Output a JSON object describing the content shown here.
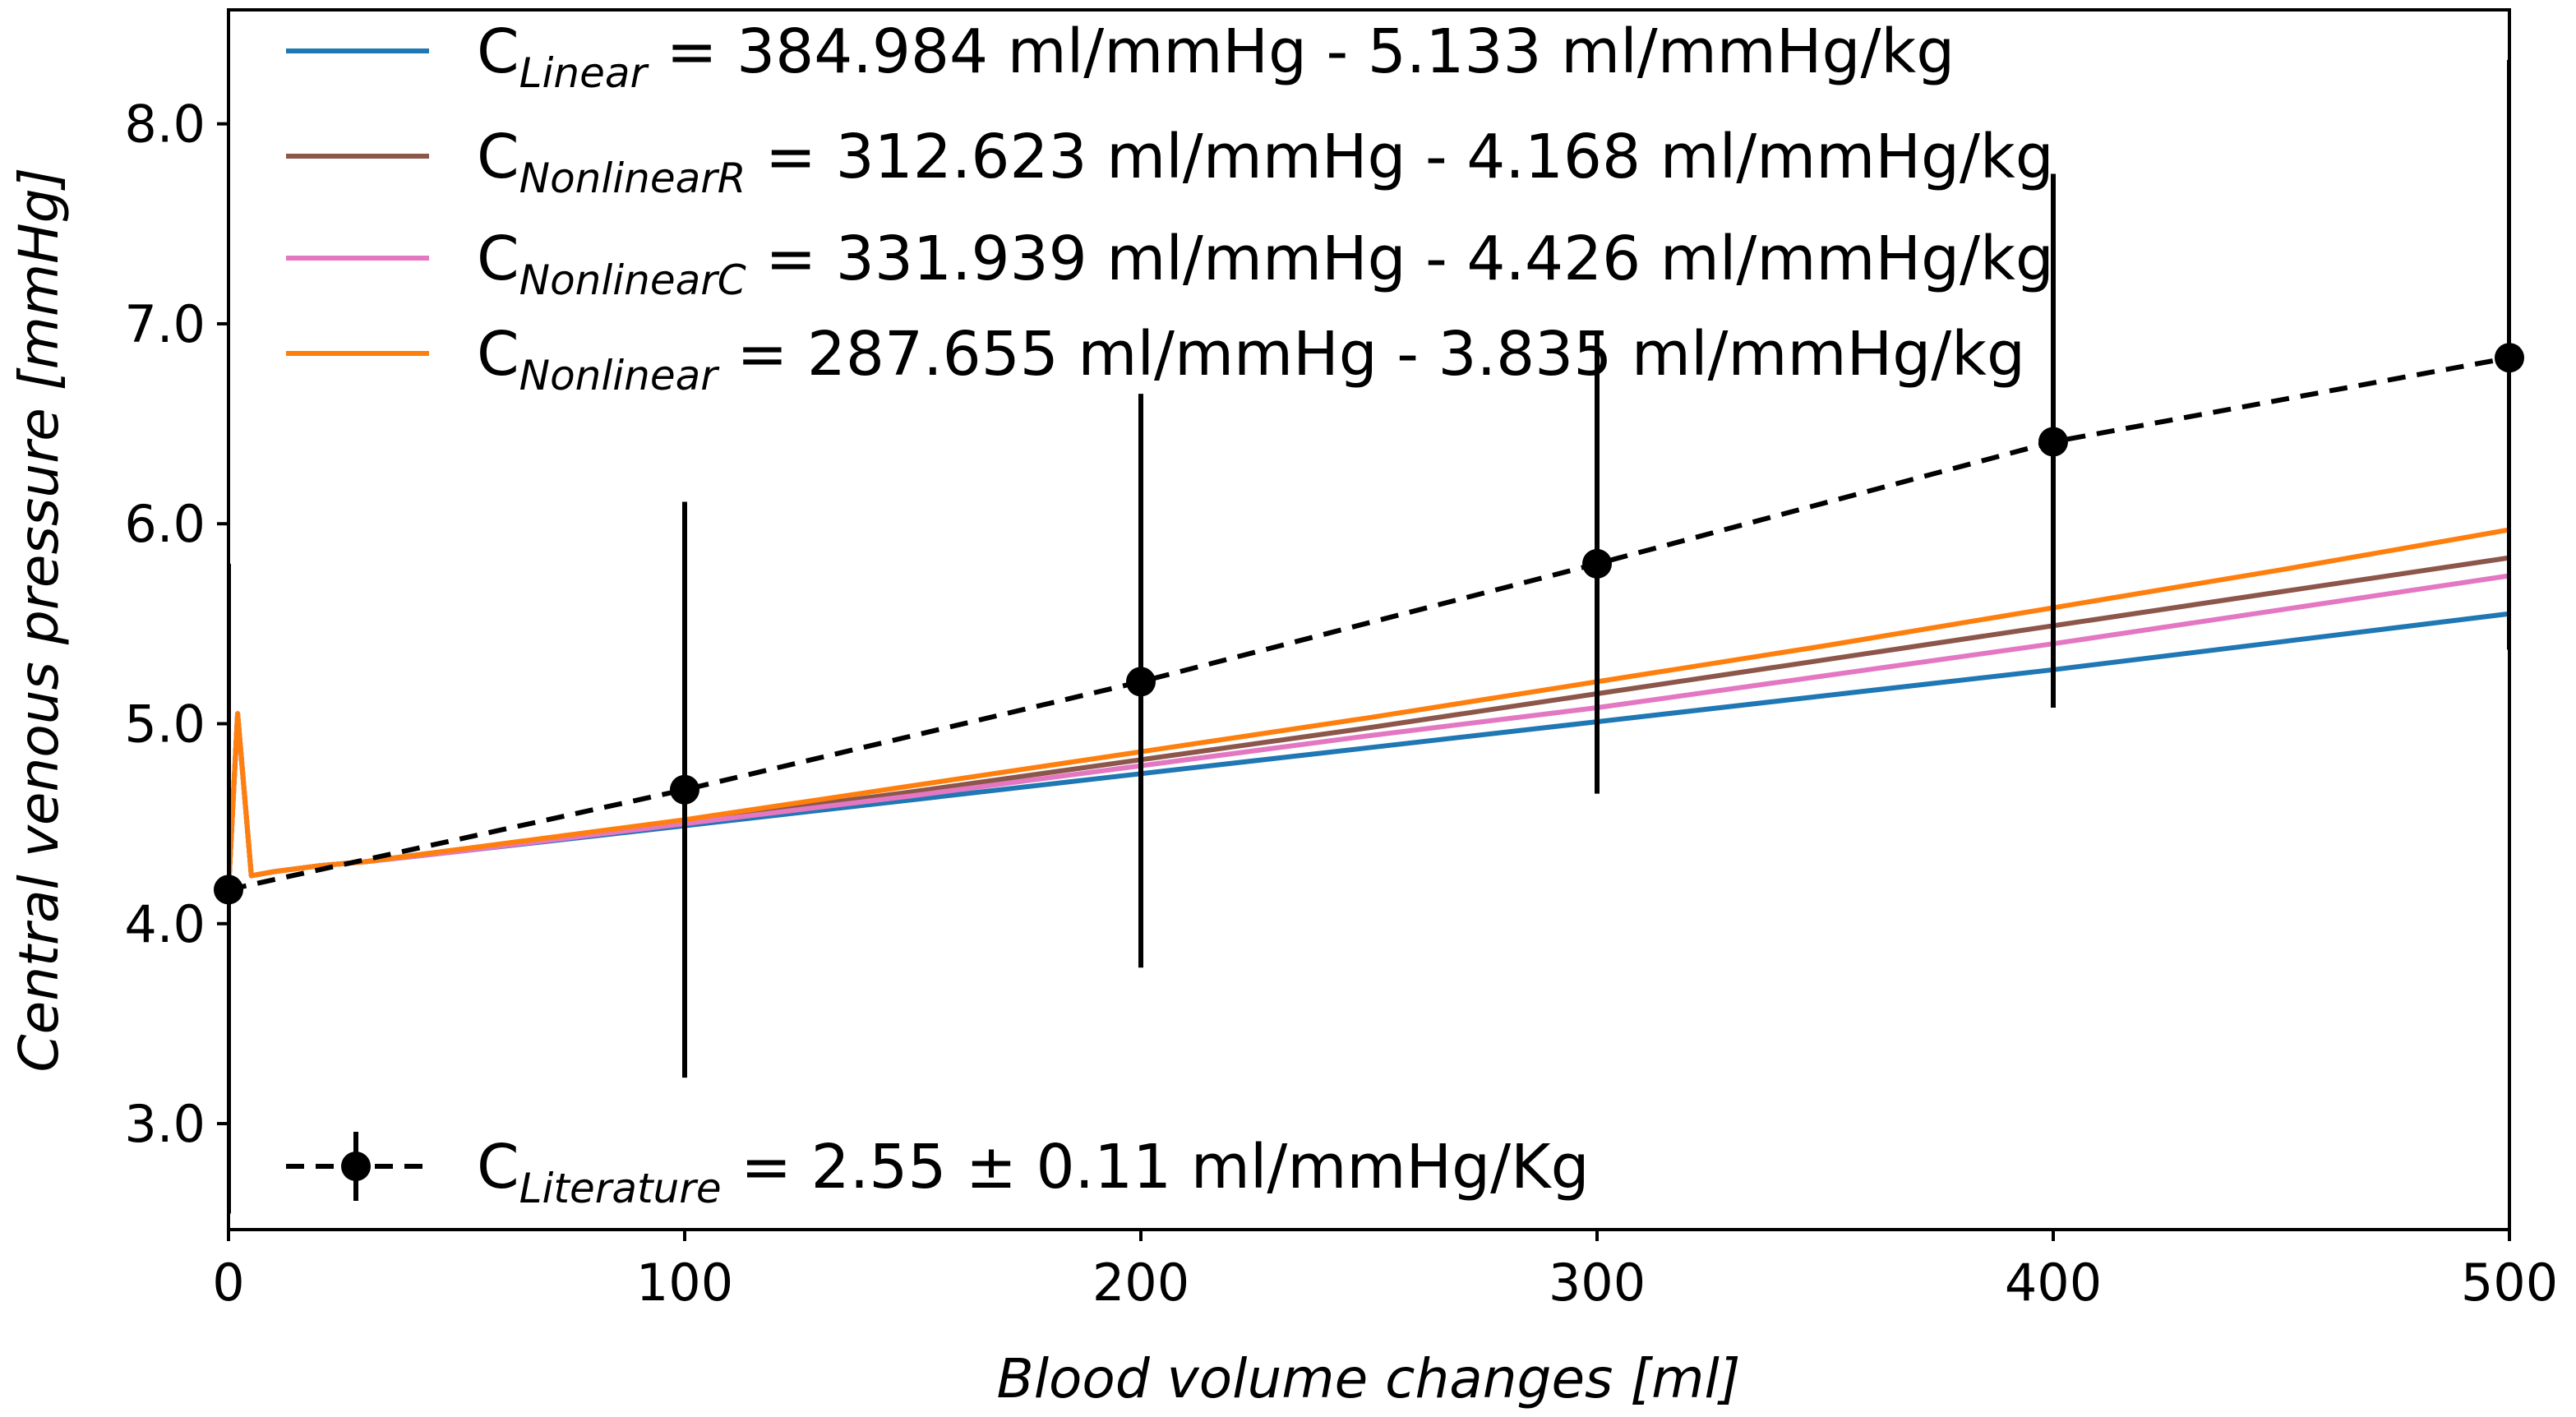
{
  "chart_data": {
    "type": "line",
    "xlabel": "Blood volume changes [ml]",
    "ylabel": "Central venous pressure [mmHg]",
    "xlim": [
      0,
      500
    ],
    "ylim": [
      2.47,
      8.57
    ],
    "x_ticks": [
      0,
      100,
      200,
      300,
      400,
      500
    ],
    "x_tick_labels": [
      "0",
      "100",
      "200",
      "300",
      "400",
      "500"
    ],
    "y_ticks": [
      3.0,
      4.0,
      5.0,
      6.0,
      7.0,
      8.0
    ],
    "y_tick_labels": [
      "3.0",
      "4.0",
      "5.0",
      "6.0",
      "7.0",
      "8.0"
    ],
    "grid": false,
    "legend_upper": {
      "placement": "top-left",
      "entries": [
        {
          "series": "linear",
          "prefix": "C",
          "sub": "Linear",
          "rest": " =  384.984 ml/mmHg -  5.133 ml/mmHg/kg"
        },
        {
          "series": "nonlinear_r",
          "prefix": "C",
          "sub": "NonlinearR",
          "rest": " =  312.623 ml/mmHg -  4.168 ml/mmHg/kg"
        },
        {
          "series": "nonlinear_c",
          "prefix": "C",
          "sub": "NonlinearC",
          "rest": " =  331.939 ml/mmHg -  4.426 ml/mmHg/kg"
        },
        {
          "series": "nonlinear",
          "prefix": "C",
          "sub": "Nonlinear",
          "rest": " =  287.655 ml/mmHg -  3.835 ml/mmHg/kg"
        }
      ]
    },
    "legend_lower": {
      "placement": "bottom-left",
      "entry": {
        "series": "literature",
        "prefix": "C",
        "sub": "Literature",
        "rest": " = 2.55 ± 0.11 ml/mmHg/Kg"
      }
    },
    "series": [
      {
        "name": "linear",
        "color": "#1f77b4",
        "style": "solid",
        "x": [
          0,
          2,
          5,
          10,
          20,
          30,
          50,
          100,
          150,
          200,
          250,
          300,
          350,
          400,
          450,
          500
        ],
        "y": [
          4.17,
          5.05,
          4.24,
          4.26,
          4.29,
          4.31,
          4.36,
          4.49,
          4.62,
          4.75,
          4.88,
          5.01,
          5.14,
          5.27,
          5.41,
          5.55
        ]
      },
      {
        "name": "nonlinear_r",
        "color": "#8c564b",
        "style": "solid",
        "x": [
          0,
          2,
          5,
          10,
          20,
          30,
          50,
          100,
          150,
          200,
          250,
          300,
          350,
          400,
          450,
          500
        ],
        "y": [
          4.17,
          5.05,
          4.24,
          4.26,
          4.29,
          4.31,
          4.37,
          4.51,
          4.66,
          4.82,
          4.98,
          5.15,
          5.32,
          5.49,
          5.66,
          5.83
        ]
      },
      {
        "name": "nonlinear_c",
        "color": "#e377c2",
        "style": "solid",
        "x": [
          0,
          2,
          5,
          10,
          20,
          30,
          50,
          100,
          150,
          200,
          250,
          300,
          350,
          400,
          450,
          500
        ],
        "y": [
          4.17,
          5.05,
          4.24,
          4.26,
          4.29,
          4.31,
          4.36,
          4.5,
          4.64,
          4.79,
          4.94,
          5.08,
          5.24,
          5.4,
          5.57,
          5.74
        ]
      },
      {
        "name": "nonlinear",
        "color": "#ff7f0e",
        "style": "solid",
        "x": [
          0,
          2,
          5,
          10,
          20,
          30,
          50,
          100,
          150,
          200,
          250,
          300,
          350,
          400,
          450,
          500
        ],
        "y": [
          4.17,
          5.05,
          4.24,
          4.26,
          4.29,
          4.31,
          4.37,
          4.52,
          4.69,
          4.86,
          5.03,
          5.21,
          5.39,
          5.58,
          5.77,
          5.97
        ]
      },
      {
        "name": "literature",
        "color": "#000000",
        "style": "dashed",
        "markers": true,
        "x": [
          0,
          100,
          200,
          300,
          400,
          500
        ],
        "y": [
          4.17,
          4.67,
          5.21,
          5.8,
          6.41,
          6.83
        ],
        "yerr_low": [
          2.55,
          3.23,
          3.78,
          4.65,
          5.08,
          5.37
        ],
        "yerr_high": [
          5.8,
          6.11,
          6.65,
          6.95,
          7.75,
          8.32
        ]
      }
    ]
  }
}
